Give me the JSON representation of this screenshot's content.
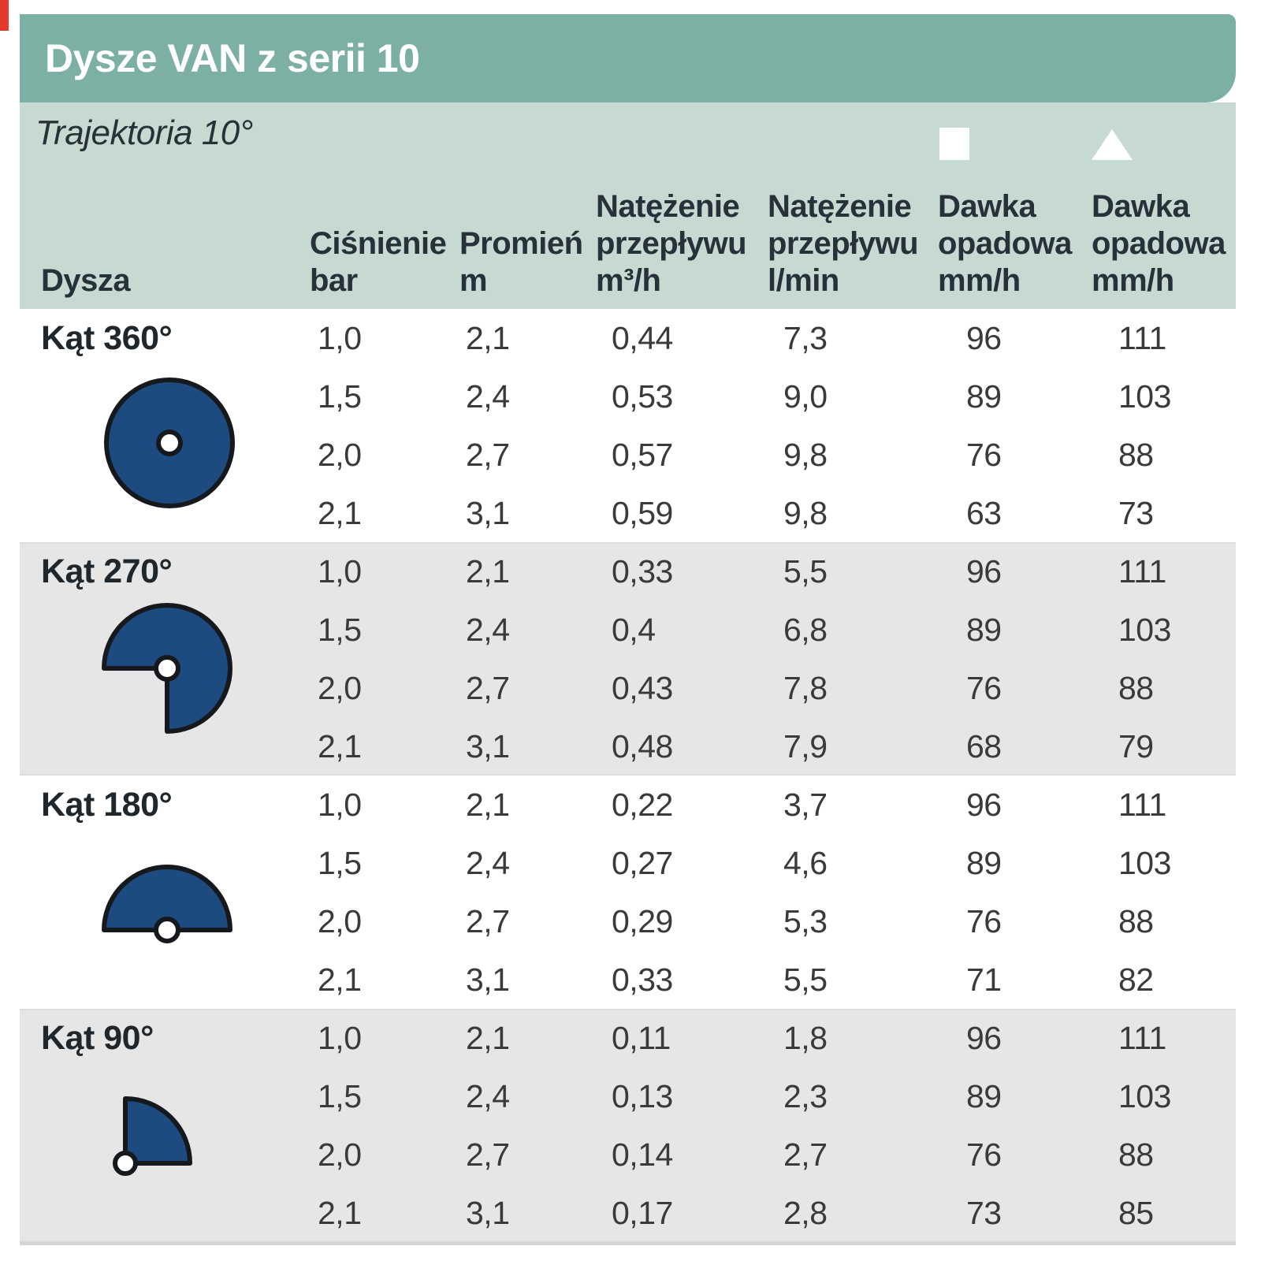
{
  "header": {
    "title": "Dysze VAN z serii 10",
    "subtitle": "Trajektoria 10°"
  },
  "colors": {
    "title_bar_teal": "#7cb0a4",
    "header_panel_green": "#c7dad2",
    "row_band_gray": "#e6e6e6",
    "nozzle_blue": "#1d4b80",
    "icon_outline": "#15181c",
    "symbol_white": "#ffffff",
    "page_edge_red": "#e6392e"
  },
  "table": {
    "columns": [
      {
        "id": "dysza",
        "line1": "Dysza"
      },
      {
        "id": "cisnienie",
        "line1": "Ciśnienie",
        "line2": "bar"
      },
      {
        "id": "promien",
        "line1": "Promień",
        "line2": "m"
      },
      {
        "id": "natezenie_m3h",
        "line1": "Natężenie",
        "line2": "przepływu",
        "line3": "m³/h"
      },
      {
        "id": "natezenie_lmin",
        "line1": "Natężenie",
        "line2": "przepływu",
        "line3": "l/min"
      },
      {
        "id": "dawka_kwadrat",
        "symbol": "square",
        "line1": "Dawka",
        "line2": "opadowa",
        "line3": "mm/h"
      },
      {
        "id": "dawka_trojkat",
        "symbol": "triangle",
        "line1": "Dawka",
        "line2": "opadowa",
        "line3": "mm/h"
      }
    ],
    "groups": [
      {
        "label": "Kąt 360°",
        "icon": "sector-360",
        "rows": [
          [
            "1,0",
            "2,1",
            "0,44",
            "7,3",
            "96",
            "111"
          ],
          [
            "1,5",
            "2,4",
            "0,53",
            "9,0",
            "89",
            "103"
          ],
          [
            "2,0",
            "2,7",
            "0,57",
            "9,8",
            "76",
            "88"
          ],
          [
            "2,1",
            "3,1",
            "0,59",
            "9,8",
            "63",
            "73"
          ]
        ]
      },
      {
        "label": "Kąt 270°",
        "icon": "sector-270",
        "rows": [
          [
            "1,0",
            "2,1",
            "0,33",
            "5,5",
            "96",
            "111"
          ],
          [
            "1,5",
            "2,4",
            "0,4",
            "6,8",
            "89",
            "103"
          ],
          [
            "2,0",
            "2,7",
            "0,43",
            "7,8",
            "76",
            "88"
          ],
          [
            "2,1",
            "3,1",
            "0,48",
            "7,9",
            "68",
            "79"
          ]
        ]
      },
      {
        "label": "Kąt 180°",
        "icon": "sector-180",
        "rows": [
          [
            "1,0",
            "2,1",
            "0,22",
            "3,7",
            "96",
            "111"
          ],
          [
            "1,5",
            "2,4",
            "0,27",
            "4,6",
            "89",
            "103"
          ],
          [
            "2,0",
            "2,7",
            "0,29",
            "5,3",
            "76",
            "88"
          ],
          [
            "2,1",
            "3,1",
            "0,33",
            "5,5",
            "71",
            "82"
          ]
        ]
      },
      {
        "label": "Kąt 90°",
        "icon": "sector-90",
        "rows": [
          [
            "1,0",
            "2,1",
            "0,11",
            "1,8",
            "96",
            "111"
          ],
          [
            "1,5",
            "2,4",
            "0,13",
            "2,3",
            "89",
            "103"
          ],
          [
            "2,0",
            "2,7",
            "0,14",
            "2,7",
            "76",
            "88"
          ],
          [
            "2,1",
            "3,1",
            "0,17",
            "2,8",
            "73",
            "85"
          ]
        ]
      }
    ]
  }
}
